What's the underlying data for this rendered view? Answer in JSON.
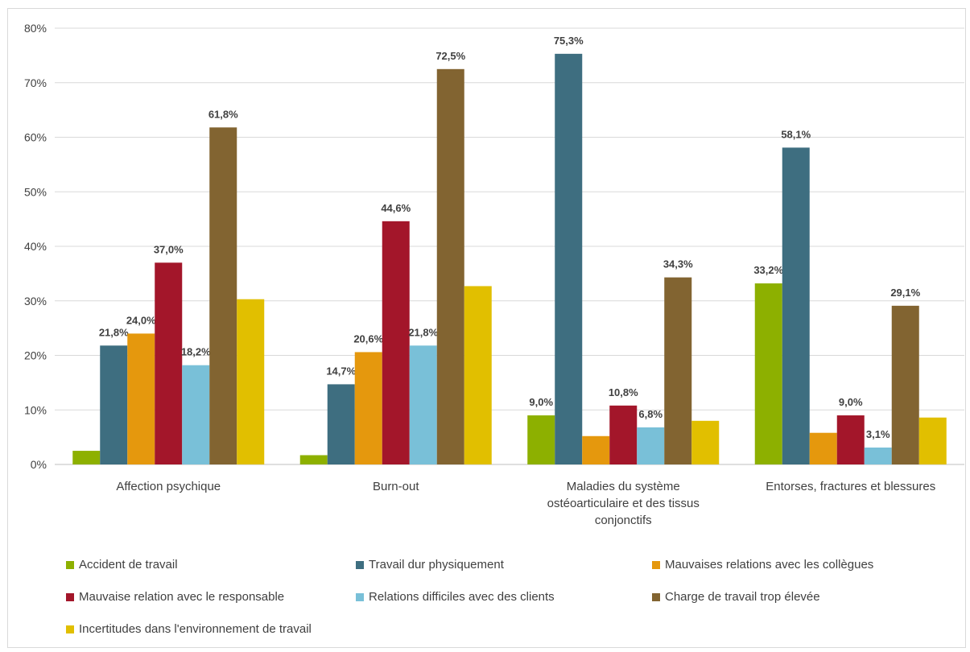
{
  "chart_data": {
    "type": "bar",
    "categories": [
      "Affection psychique",
      "Burn-out",
      "Maladies du système ostéoarticulaire et des tissus conjonctifs",
      "Entorses, fractures et blessures"
    ],
    "category_lines": [
      [
        "Affection psychique"
      ],
      [
        "Burn-out"
      ],
      [
        "Maladies du système",
        "ostéoarticulaire et des tissus",
        "conjonctifs"
      ],
      [
        "Entorses, fractures et blessures"
      ]
    ],
    "series": [
      {
        "name": "Accident de travail",
        "color": "#8db000",
        "values": [
          2.5,
          1.7,
          9.0,
          33.2
        ],
        "labels": [
          "",
          "",
          "9,0%",
          "33,2%"
        ]
      },
      {
        "name": "Travail dur physiquement",
        "color": "#3e6e80",
        "values": [
          21.8,
          14.7,
          75.3,
          58.1
        ],
        "labels": [
          "21,8%",
          "14,7%",
          "75,3%",
          "58,1%"
        ]
      },
      {
        "name": "Mauvaises relations avec les collègues",
        "color": "#e5980d",
        "values": [
          24.0,
          20.6,
          5.2,
          5.8
        ],
        "labels": [
          "24,0%",
          "20,6%",
          "",
          ""
        ]
      },
      {
        "name": "Mauvaise relation avec le responsable",
        "color": "#a3162a",
        "values": [
          37.0,
          44.6,
          10.8,
          9.0
        ],
        "labels": [
          "37,0%",
          "44,6%",
          "10,8%",
          "9,0%"
        ]
      },
      {
        "name": "Relations difficiles avec des clients",
        "color": "#79c0d8",
        "values": [
          18.2,
          21.8,
          6.8,
          3.1
        ],
        "labels": [
          "18,2%",
          "21,8%",
          "6,8%",
          "3,1%"
        ]
      },
      {
        "name": "Charge de travail trop élevée",
        "color": "#826431",
        "values": [
          61.8,
          72.5,
          34.3,
          29.1
        ],
        "labels": [
          "61,8%",
          "72,5%",
          "34,3%",
          "29,1%"
        ]
      },
      {
        "name": "Incertitudes dans l'environnement de travail",
        "color": "#e1bf00",
        "values": [
          30.3,
          32.7,
          8.0,
          8.6
        ],
        "labels": [
          "",
          "",
          "",
          ""
        ]
      }
    ],
    "ylim": [
      0,
      80
    ],
    "yticks": [
      "0%",
      "10%",
      "20%",
      "30%",
      "40%",
      "50%",
      "60%",
      "70%",
      "80%"
    ],
    "grid": true,
    "legend_position": "bottom"
  }
}
